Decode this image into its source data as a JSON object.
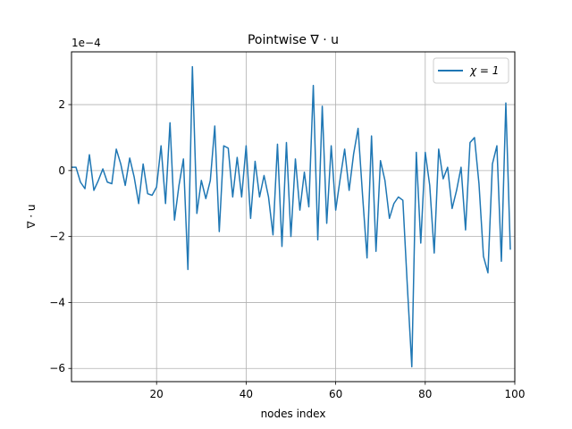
{
  "chart_data": {
    "type": "line",
    "title": "Pointwise ∇ · u",
    "xlabel": "nodes index",
    "ylabel": "∇ · u",
    "y_offset_label": "1e−4",
    "xlim": [
      1,
      100
    ],
    "ylim": [
      -6.4,
      3.6
    ],
    "y_scale_factor": 0.0001,
    "xticks": [
      20,
      40,
      60,
      80,
      100
    ],
    "yticks": [
      -6,
      -4,
      -2,
      0,
      2
    ],
    "xtick_labels": [
      "20",
      "40",
      "60",
      "80",
      "100"
    ],
    "ytick_labels": [
      "−6",
      "−4",
      "−2",
      "0",
      "2"
    ],
    "grid": true,
    "legend_position": "top-right",
    "series": [
      {
        "name": "χ = 1",
        "color": "#1f77b4",
        "x": [
          1,
          2,
          3,
          4,
          5,
          6,
          7,
          8,
          9,
          10,
          11,
          12,
          13,
          14,
          15,
          16,
          17,
          18,
          19,
          20,
          21,
          22,
          23,
          24,
          25,
          26,
          27,
          28,
          29,
          30,
          31,
          32,
          33,
          34,
          35,
          36,
          37,
          38,
          39,
          40,
          41,
          42,
          43,
          44,
          45,
          46,
          47,
          48,
          49,
          50,
          51,
          52,
          53,
          54,
          55,
          56,
          57,
          58,
          59,
          60,
          61,
          62,
          63,
          64,
          65,
          66,
          67,
          68,
          69,
          70,
          71,
          72,
          73,
          74,
          75,
          76,
          77,
          78,
          79,
          80,
          81,
          82,
          83,
          84,
          85,
          86,
          87,
          88,
          89,
          90,
          91,
          92,
          93,
          94,
          95,
          96,
          97,
          98,
          99
        ],
        "values": [
          0.1,
          0.1,
          -0.35,
          -0.55,
          0.48,
          -0.6,
          -0.3,
          0.05,
          -0.35,
          -0.4,
          0.65,
          0.2,
          -0.45,
          0.38,
          -0.2,
          -1.0,
          0.2,
          -0.7,
          -0.75,
          -0.5,
          0.75,
          -1.0,
          1.45,
          -1.5,
          -0.45,
          0.35,
          -3.0,
          3.15,
          -1.3,
          -0.3,
          -0.85,
          -0.3,
          1.35,
          -1.85,
          0.75,
          0.68,
          -0.8,
          0.4,
          -0.8,
          0.75,
          -1.45,
          0.28,
          -0.8,
          -0.15,
          -0.8,
          -1.95,
          0.8,
          -2.3,
          0.85,
          -2.0,
          0.35,
          -1.2,
          -0.05,
          -1.1,
          2.58,
          -2.1,
          1.95,
          -1.6,
          0.75,
          -1.2,
          -0.25,
          0.65,
          -0.6,
          0.5,
          1.28,
          -0.75,
          -2.65,
          1.05,
          -2.45,
          0.3,
          -0.3,
          -1.45,
          -1.0,
          -0.8,
          -0.9,
          -3.5,
          -5.95,
          0.55,
          -2.2,
          0.55,
          -0.45,
          -2.5,
          0.65,
          -0.25,
          0.1,
          -1.15,
          -0.6,
          0.1,
          -1.8,
          0.85,
          1.0,
          -0.4,
          -2.6,
          -3.1,
          0.2,
          0.75,
          -2.75,
          2.05,
          -2.4
        ]
      }
    ]
  }
}
